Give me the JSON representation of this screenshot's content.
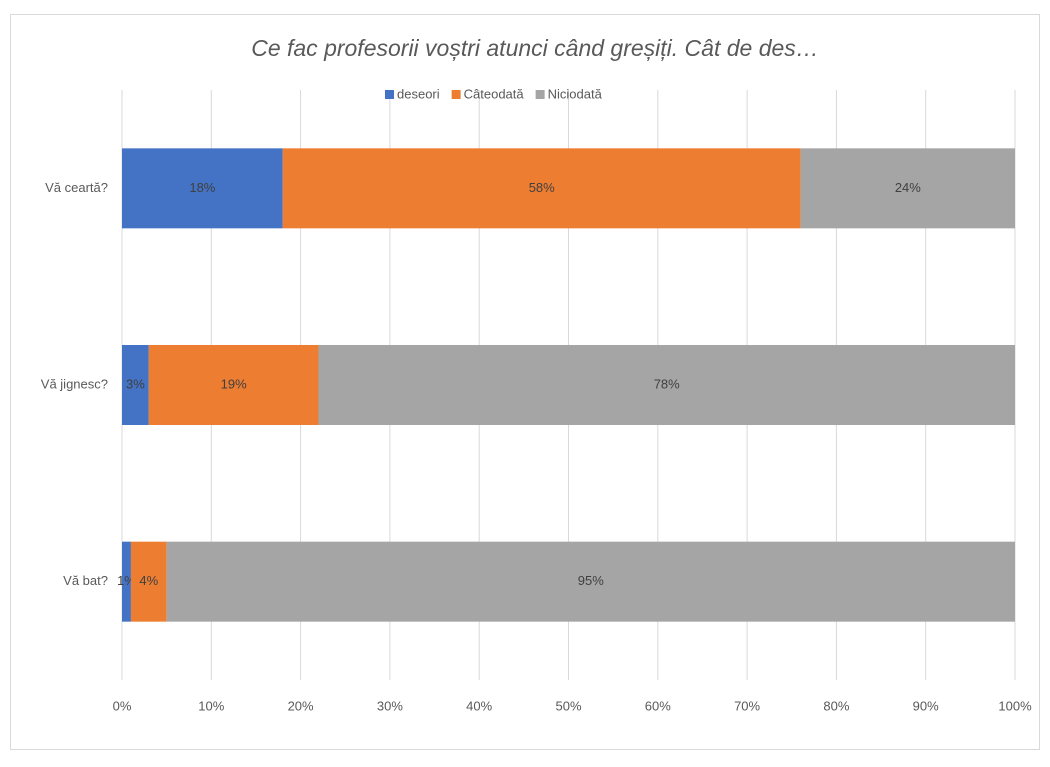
{
  "chart_data": {
    "type": "stacked_bar_horizontal",
    "title": "Ce fac profesorii voștri atunci când greșiți. Cât de des…",
    "categories": [
      "Vă ceartă?",
      "Vă jignesc?",
      "Vă bat?"
    ],
    "series": [
      {
        "name": "deseori",
        "color": "#4472c4",
        "values": [
          18,
          3,
          1
        ],
        "value_labels": [
          "18%",
          "3%",
          "1%"
        ]
      },
      {
        "name": "Câteodată",
        "color": "#ed7d31",
        "values": [
          58,
          19,
          4
        ],
        "value_labels": [
          "58%",
          "19%",
          "4%"
        ]
      },
      {
        "name": "Niciodată",
        "color": "#a5a5a5",
        "values": [
          24,
          78,
          95
        ],
        "value_labels": [
          "24%",
          "78%",
          "95%"
        ]
      }
    ],
    "xlim": [
      0,
      100
    ],
    "xticks": [
      {
        "value": 0,
        "label": "0%"
      },
      {
        "value": 10,
        "label": "10%"
      },
      {
        "value": 20,
        "label": "20%"
      },
      {
        "value": 30,
        "label": "30%"
      },
      {
        "value": 40,
        "label": "40%"
      },
      {
        "value": 50,
        "label": "50%"
      },
      {
        "value": 60,
        "label": "60%"
      },
      {
        "value": 70,
        "label": "70%"
      },
      {
        "value": 80,
        "label": "80%"
      },
      {
        "value": 90,
        "label": "90%"
      },
      {
        "value": 100,
        "label": "100%"
      }
    ],
    "grid": true,
    "legend": "top"
  }
}
